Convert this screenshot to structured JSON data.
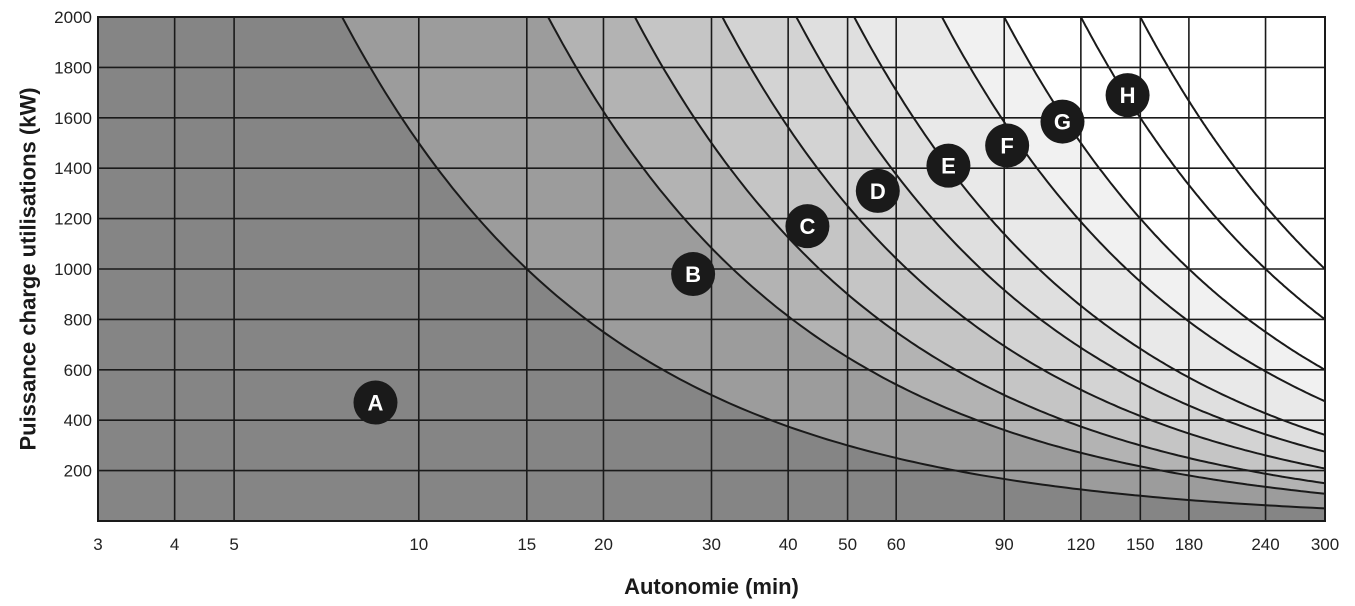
{
  "chart_data": {
    "type": "area",
    "title": "",
    "xlabel": "Autonomie (min)",
    "ylabel": "Puissance charge utilisations (kW)",
    "x_scale": "log",
    "xlim": [
      3,
      300
    ],
    "ylim": [
      0,
      2000
    ],
    "grid": true,
    "x_ticks": [
      3,
      4,
      5,
      10,
      15,
      20,
      30,
      40,
      50,
      60,
      90,
      120,
      150,
      180,
      240,
      300
    ],
    "x_tick_labels": [
      "3",
      "4",
      "5",
      "10",
      "15",
      "20",
      "30",
      "40",
      "50",
      "60",
      "90",
      "120",
      "150",
      "180",
      "240",
      "300"
    ],
    "y_ticks": [
      200,
      400,
      600,
      800,
      1000,
      1200,
      1400,
      1600,
      1800,
      2000
    ],
    "y_tick_labels": [
      "200",
      "400",
      "600",
      "800",
      "1000",
      "1200",
      "1400",
      "1600",
      "1800",
      "2000"
    ],
    "boundaries": [
      {
        "name": "A/B",
        "energy_kwmin": 15000,
        "x": [
          7.5,
          10,
          15,
          20,
          30,
          40,
          60,
          90,
          120,
          180,
          240,
          300
        ],
        "y": [
          2000,
          1500,
          1000,
          750,
          500,
          375,
          250,
          167,
          125,
          83,
          63,
          50
        ]
      },
      {
        "name": "B/C",
        "energy_kwmin": 32500,
        "x": [
          16.25,
          20,
          30,
          40,
          60,
          90,
          120,
          180,
          240,
          300
        ],
        "y": [
          2000,
          1625,
          1083,
          813,
          542,
          361,
          271,
          181,
          135,
          108
        ]
      },
      {
        "name": "C/D",
        "energy_kwmin": 45000,
        "x": [
          22.5,
          30,
          40,
          60,
          90,
          120,
          180,
          240,
          300
        ],
        "y": [
          2000,
          1500,
          1125,
          750,
          500,
          375,
          250,
          188,
          150
        ]
      },
      {
        "name": "D/E",
        "energy_kwmin": 62500,
        "x": [
          31.25,
          40,
          60,
          90,
          120,
          180,
          240,
          300
        ],
        "y": [
          2000,
          1563,
          1042,
          694,
          521,
          347,
          260,
          208
        ]
      },
      {
        "name": "E/F",
        "energy_kwmin": 82500,
        "x": [
          41.25,
          60,
          90,
          120,
          180,
          240,
          300
        ],
        "y": [
          2000,
          1375,
          917,
          688,
          458,
          344,
          275
        ]
      },
      {
        "name": "F/G",
        "energy_kwmin": 102500,
        "x": [
          51.25,
          60,
          90,
          120,
          180,
          240,
          300
        ],
        "y": [
          2000,
          1708,
          1139,
          854,
          569,
          427,
          342
        ]
      },
      {
        "name": "G/H",
        "energy_kwmin": 142500,
        "x": [
          71.25,
          90,
          120,
          180,
          240,
          300
        ],
        "y": [
          2000,
          1583,
          1188,
          792,
          594,
          475
        ]
      },
      {
        "name": "H/-",
        "energy_kwmin": 180000,
        "x": [
          90,
          120,
          180,
          240,
          300
        ],
        "y": [
          2000,
          1500,
          1000,
          750,
          600
        ]
      },
      {
        "name": "H/-",
        "energy_kwmin": 240000,
        "x": [
          120,
          180,
          240,
          300
        ],
        "y": [
          2000,
          1333,
          1000,
          800
        ]
      },
      {
        "name": "H/-",
        "energy_kwmin": 300000,
        "x": [
          150,
          180,
          240,
          300
        ],
        "y": [
          2000,
          1667,
          1250,
          1000
        ]
      }
    ],
    "zones": [
      {
        "label": "A",
        "x": 8.5,
        "y": 470,
        "color": "#858585"
      },
      {
        "label": "B",
        "x": 28,
        "y": 980,
        "color": "#9c9c9c"
      },
      {
        "label": "C",
        "x": 43,
        "y": 1170,
        "color": "#b3b3b3"
      },
      {
        "label": "D",
        "x": 56,
        "y": 1310,
        "color": "#c5c5c5"
      },
      {
        "label": "E",
        "x": 73,
        "y": 1410,
        "color": "#d3d3d3"
      },
      {
        "label": "F",
        "x": 91,
        "y": 1490,
        "color": "#dfdfdf"
      },
      {
        "label": "G",
        "x": 112,
        "y": 1585,
        "color": "#e9e9e9"
      },
      {
        "label": "H",
        "x": 143,
        "y": 1690,
        "color": "#f1f1f1"
      }
    ],
    "colors": {
      "above_last": "#ffffff",
      "grid": "#1a1a1a",
      "curve": "#1a1a1a",
      "marker": "#1a1a1a",
      "marker_text": "#ffffff"
    }
  }
}
